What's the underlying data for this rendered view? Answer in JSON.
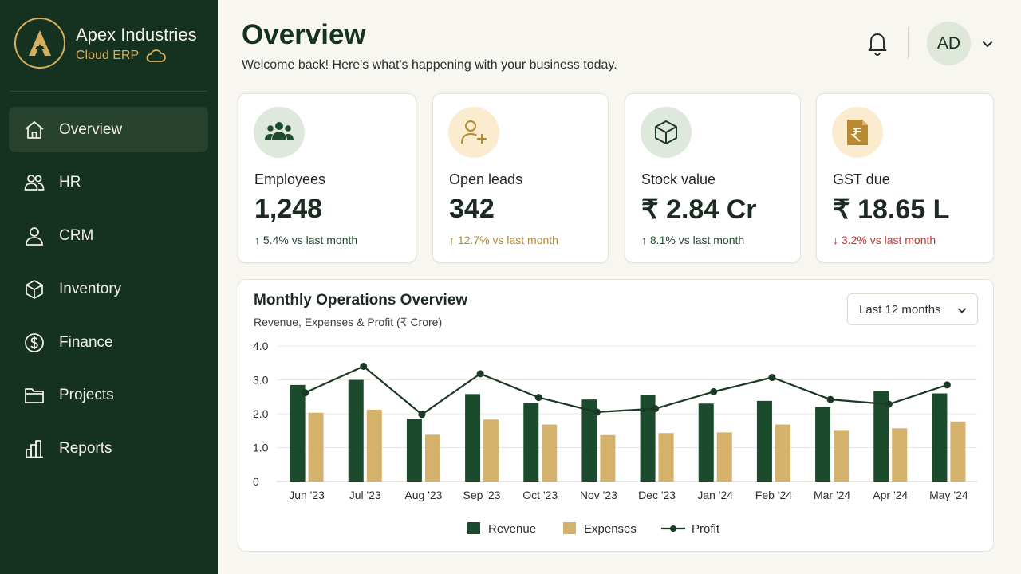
{
  "brand": {
    "name": "Apex Industries",
    "subtitle": "Cloud ERP"
  },
  "nav": [
    {
      "label": "Overview",
      "icon": "home-icon",
      "active": true
    },
    {
      "label": "HR",
      "icon": "users-icon"
    },
    {
      "label": "CRM",
      "icon": "user-icon"
    },
    {
      "label": "Inventory",
      "icon": "box-icon"
    },
    {
      "label": "Finance",
      "icon": "dollar-circle-icon"
    },
    {
      "label": "Projects",
      "icon": "folder-icon"
    },
    {
      "label": "Reports",
      "icon": "bar-chart-icon"
    }
  ],
  "header": {
    "title": "Overview",
    "subtitle": "Welcome back! Here's what's happening with your business today.",
    "avatar_initials": "AD"
  },
  "kpis": [
    {
      "label": "Employees",
      "value": "1,248",
      "change": "↑ 5.4%",
      "suffix": "vs last month",
      "trend": "up",
      "icon": "people-icon"
    },
    {
      "label": "Open leads",
      "value": "342",
      "change": "↑ 12.7%",
      "suffix": "vs last month",
      "trend": "up",
      "icon": "add-user-icon"
    },
    {
      "label": "Stock value",
      "value": "₹ 2.84 Cr",
      "change": "↑ 8.1%",
      "suffix": "vs last month",
      "trend": "up",
      "icon": "cube-icon"
    },
    {
      "label": "GST due",
      "value": "₹ 18.65 L",
      "change": "↓ 3.2%",
      "suffix": "vs last month",
      "trend": "down",
      "icon": "rupee-document-icon"
    }
  ],
  "chart_card": {
    "range_label": "Last 12 months"
  },
  "colors": {
    "sidebar": "#15311f",
    "accent_gold": "#d6ae5c",
    "revenue": "#1c4a2c",
    "expenses": "#d4b26b",
    "profit": "#1b3a26",
    "down": "#c6322f"
  },
  "chart_data": {
    "type": "bar",
    "title": "Monthly Operations Overview",
    "subtitle": "Revenue, Expenses & Profit (₹ Crore)",
    "categories": [
      "Jun '23",
      "Jul '23",
      "Aug '23",
      "Sep '23",
      "Oct '23",
      "Nov '23",
      "Dec '23",
      "Jan '24",
      "Feb '24",
      "Mar '24",
      "Apr '24",
      "May '24"
    ],
    "series": [
      {
        "name": "Revenue",
        "type": "bar",
        "values": [
          2.85,
          3.0,
          1.85,
          2.58,
          2.32,
          2.42,
          2.55,
          2.3,
          2.38,
          2.2,
          2.67,
          2.6
        ]
      },
      {
        "name": "Expenses",
        "type": "bar",
        "values": [
          2.03,
          2.12,
          1.38,
          1.83,
          1.68,
          1.37,
          1.43,
          1.45,
          1.68,
          1.52,
          1.57,
          1.77
        ]
      },
      {
        "name": "Profit",
        "type": "line",
        "values": [
          2.62,
          3.4,
          1.98,
          3.18,
          2.48,
          2.05,
          2.15,
          2.65,
          3.07,
          2.42,
          2.28,
          2.85
        ]
      }
    ],
    "y_ticks": [
      "0",
      "1.0",
      "2.0",
      "3.0",
      "4.0"
    ],
    "ylim": [
      0,
      4
    ],
    "grid": true,
    "legend": "bottom-center"
  }
}
